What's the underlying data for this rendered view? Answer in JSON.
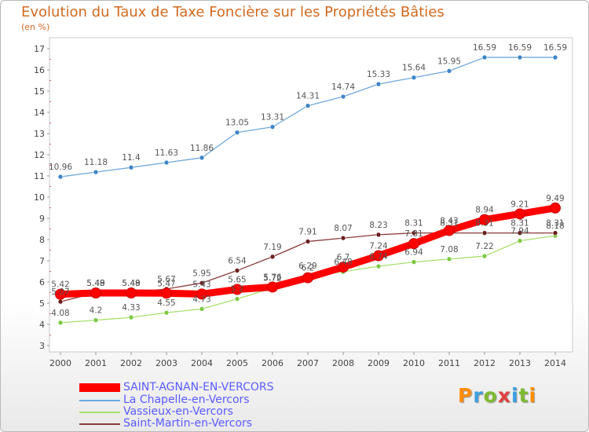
{
  "title": "Evolution du Taux de Taxe Foncière sur les Propriétés Bâties",
  "unit": "(en %)",
  "logo": {
    "letters": [
      "P",
      "r",
      "o",
      "x",
      "i",
      "t",
      "i"
    ],
    "colors": [
      "#ff8c00",
      "#3aa0e0",
      "#7dbb2f",
      "#e04040",
      "#3aa0e0",
      "#7dbb2f",
      "#ff8c00"
    ]
  },
  "chart_data": {
    "type": "line",
    "title": "Evolution du Taux de Taxe Foncière sur les Propriétés Bâties",
    "ylabel": "(en %)",
    "xlabel": "",
    "ylim": [
      3,
      17
    ],
    "yticks": [
      3,
      4,
      5,
      6,
      7,
      8,
      9,
      10,
      11,
      12,
      13,
      14,
      15,
      16,
      17
    ],
    "x": [
      "2000",
      "2001",
      "2002",
      "2003",
      "2004",
      "2005",
      "2006",
      "2007",
      "2008",
      "2009",
      "2010",
      "2011",
      "2012",
      "2013",
      "2014"
    ],
    "grid": false,
    "legend_position": "bottom-left",
    "series": [
      {
        "name": "La Chapelle-en-Vercors",
        "color": "#6fa8dc",
        "marker": "#3f85c7",
        "width": "thin",
        "values": [
          10.96,
          11.18,
          11.4,
          11.63,
          11.86,
          13.05,
          13.31,
          14.31,
          14.74,
          15.33,
          15.64,
          15.95,
          16.59,
          16.59,
          16.59
        ],
        "labels": [
          "10.96",
          "11.18",
          "11.4",
          "11.63",
          "11.86",
          "13.05",
          "13.31",
          "14.31",
          "14.74",
          "15.33",
          "15.64",
          "15.95",
          "16.59",
          "16.59",
          "16.59"
        ]
      },
      {
        "name": "Vassieux-en-Vercors",
        "color": "#a8e06a",
        "marker": "#7dc940",
        "width": "thin",
        "values": [
          4.08,
          4.2,
          4.33,
          4.55,
          4.73,
          5.2,
          5.72,
          6.29,
          6.48,
          6.74,
          6.94,
          7.08,
          7.22,
          7.94,
          8.18
        ],
        "labels": [
          "4.08",
          "4.2",
          "4.33",
          "4.55",
          "4.73",
          "5.2",
          "5.72",
          "6.29",
          "6.48",
          "6.74",
          "6.94",
          "7.08",
          "7.22",
          "7.94",
          "8.18"
        ]
      },
      {
        "name": "Saint-Martin-en-Vercors",
        "color": "#8b3a3a",
        "marker": "#6b1f1f",
        "width": "thin",
        "values": [
          5.07,
          5.49,
          5.49,
          5.67,
          5.95,
          6.54,
          7.19,
          7.91,
          8.07,
          8.23,
          8.31,
          8.31,
          8.31,
          8.31,
          8.31
        ],
        "labels": [
          "5.07",
          "5.49",
          "5.49",
          "5.67",
          "5.95",
          "6.54",
          "7.19",
          "7.91",
          "8.07",
          "8.23",
          "8.31",
          "8.31",
          "8.31",
          "8.31",
          "8.31"
        ]
      },
      {
        "name": "SAINT-AGNAN-EN-VERCORS",
        "color": "#ff0000",
        "marker": "#ff0000",
        "width": "thick",
        "values": [
          5.42,
          5.48,
          5.48,
          5.47,
          5.43,
          5.65,
          5.76,
          6.2,
          6.7,
          7.24,
          7.81,
          8.43,
          8.94,
          9.21,
          9.49
        ],
        "labels": [
          "5.42",
          "5.48",
          "5.48",
          "5.47",
          "5.43",
          "5.65",
          "5.76",
          "6.2",
          "6.7",
          "7.24",
          "7.81",
          "8.43",
          "8.94",
          "9.21",
          "9.49"
        ]
      }
    ]
  },
  "legend": [
    {
      "label": "SAINT-AGNAN-EN-VERCORS",
      "color": "#ff0000",
      "width": "thick"
    },
    {
      "label": "La Chapelle-en-Vercors",
      "color": "#6fa8dc",
      "width": "thin"
    },
    {
      "label": "Vassieux-en-Vercors",
      "color": "#a8e06a",
      "width": "thin"
    },
    {
      "label": "Saint-Martin-en-Vercors",
      "color": "#8b3a3a",
      "width": "thin"
    }
  ]
}
